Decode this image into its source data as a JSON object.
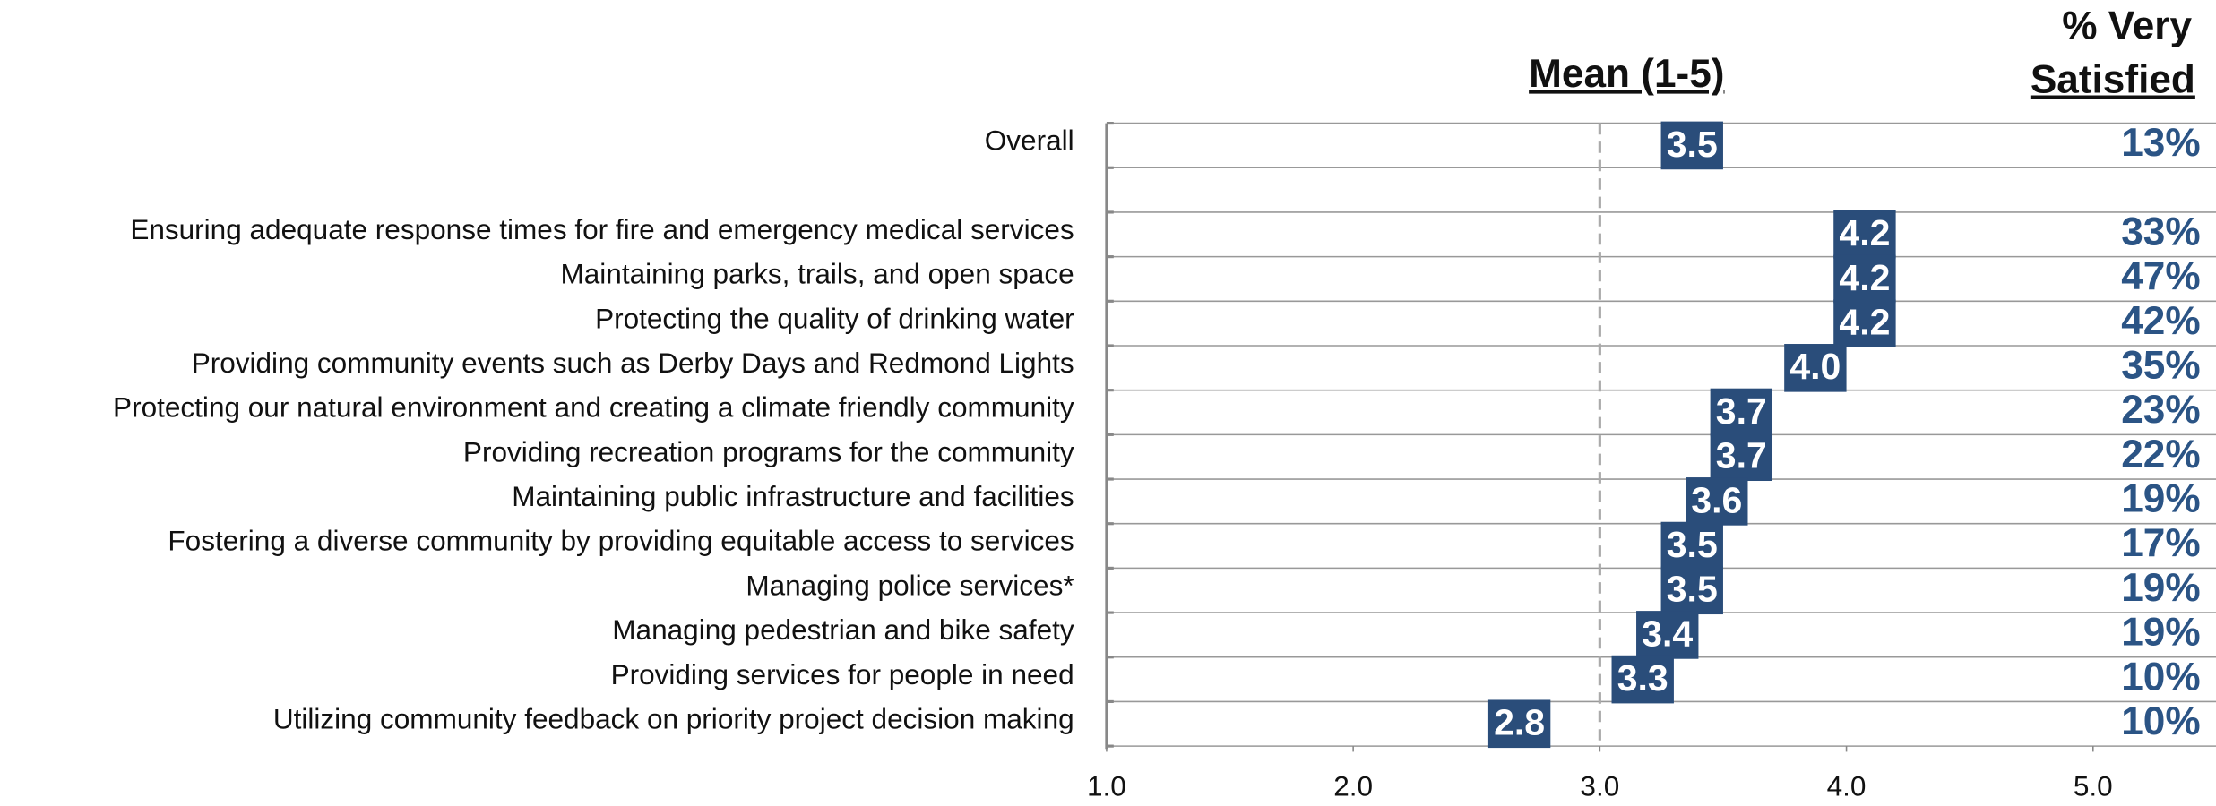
{
  "chart_data": {
    "type": "dot-label",
    "title": "Mean (1-5)",
    "pct_header": [
      "% Very",
      "Satisfied"
    ],
    "categories": [
      "Overall",
      "Ensuring adequate response times for fire and emergency medical services",
      "Maintaining parks, trails, and open space",
      "Protecting the quality of drinking water",
      "Providing community events such as Derby Days and Redmond Lights",
      "Protecting our natural environment and creating a climate friendly community",
      "Providing recreation programs for the community",
      "Maintaining public infrastructure and facilities",
      "Fostering a diverse community by providing equitable access to services",
      "Managing police services*",
      "Managing pedestrian and bike safety",
      "Providing services for people in need",
      "Utilizing community feedback on priority project decision making"
    ],
    "values": [
      3.5,
      4.2,
      4.2,
      4.2,
      4.0,
      3.7,
      3.7,
      3.6,
      3.5,
      3.5,
      3.4,
      3.3,
      2.8
    ],
    "value_labels": [
      "3.5",
      "4.2",
      "4.2",
      "4.2",
      "4.0",
      "3.7",
      "3.7",
      "3.6",
      "3.5",
      "3.5",
      "3.4",
      "3.3",
      "2.8"
    ],
    "pct_labels": [
      "13%",
      "33%",
      "47%",
      "42%",
      "35%",
      "23%",
      "22%",
      "19%",
      "17%",
      "19%",
      "19%",
      "10%",
      "10%"
    ],
    "color": "#2a4d7a",
    "xlim": [
      1,
      5
    ],
    "xticks": [
      {
        "value": 1,
        "label": "1.0"
      },
      {
        "value": 2,
        "label": "2.0"
      },
      {
        "value": 3,
        "label": "3.0"
      },
      {
        "value": 4,
        "label": "4.0"
      },
      {
        "value": 5,
        "label": "5.0"
      }
    ],
    "reference_line": 3,
    "grid": true
  }
}
